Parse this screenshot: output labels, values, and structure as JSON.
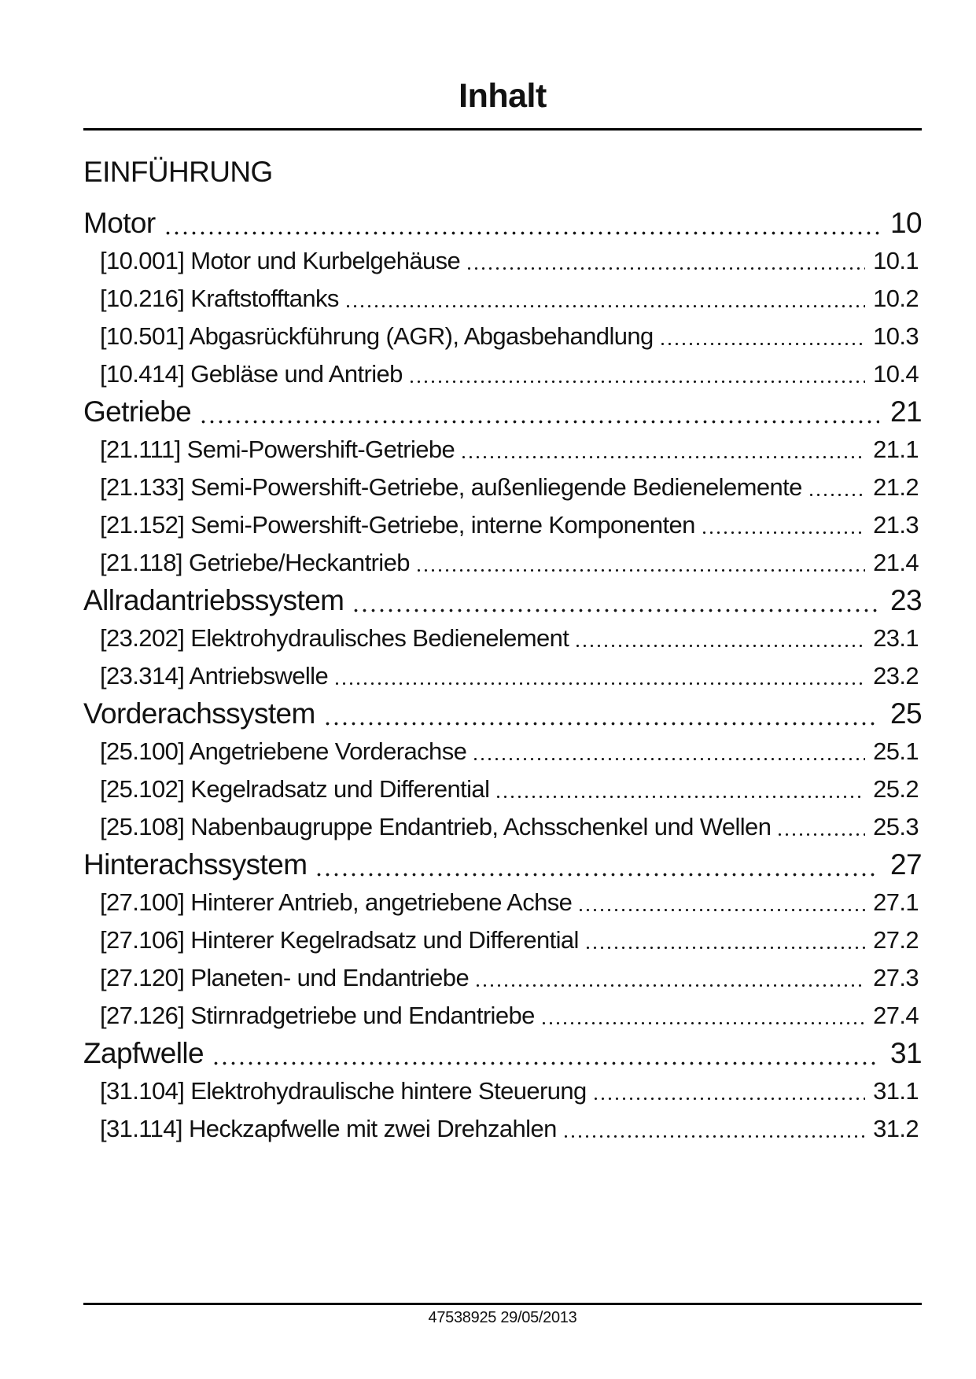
{
  "document": {
    "title": "Inhalt",
    "intro_heading": "EINFÜHRUNG",
    "footer_text": "47538925 29/05/2013",
    "colors": {
      "text": "#121212",
      "rule": "#000000",
      "background": "#ffffff"
    },
    "toc": {
      "sections": [
        {
          "label": "Motor",
          "page": "10",
          "entries": [
            {
              "label": "[10.001] Motor und Kurbelgehäuse",
              "page": "10.1"
            },
            {
              "label": "[10.216] Kraftstofftanks",
              "page": "10.2"
            },
            {
              "label": "[10.501] Abgasrückführung (AGR), Abgasbehandlung",
              "page": "10.3"
            },
            {
              "label": "[10.414] Gebläse und Antrieb",
              "page": "10.4"
            }
          ]
        },
        {
          "label": "Getriebe",
          "page": "21",
          "entries": [
            {
              "label": "[21.111] Semi-Powershift-Getriebe",
              "page": "21.1"
            },
            {
              "label": "[21.133] Semi-Powershift-Getriebe, außenliegende Bedienelemente",
              "page": "21.2"
            },
            {
              "label": "[21.152] Semi-Powershift-Getriebe, interne Komponenten",
              "page": "21.3"
            },
            {
              "label": "[21.118] Getriebe/Heckantrieb",
              "page": "21.4"
            }
          ]
        },
        {
          "label": "Allradantriebssystem",
          "page": "23",
          "entries": [
            {
              "label": "[23.202] Elektrohydraulisches Bedienelement",
              "page": "23.1"
            },
            {
              "label": "[23.314] Antriebswelle",
              "page": "23.2"
            }
          ]
        },
        {
          "label": "Vorderachssystem",
          "page": "25",
          "entries": [
            {
              "label": "[25.100] Angetriebene Vorderachse",
              "page": "25.1"
            },
            {
              "label": "[25.102] Kegelradsatz und Differential",
              "page": "25.2"
            },
            {
              "label": "[25.108] Nabenbaugruppe Endantrieb, Achsschenkel und Wellen",
              "page": "25.3"
            }
          ]
        },
        {
          "label": "Hinterachssystem",
          "page": "27",
          "entries": [
            {
              "label": "[27.100] Hinterer Antrieb, angetriebene Achse",
              "page": "27.1"
            },
            {
              "label": "[27.106] Hinterer Kegelradsatz und Differential",
              "page": "27.2"
            },
            {
              "label": "[27.120] Planeten- und Endantriebe",
              "page": "27.3"
            },
            {
              "label": "[27.126] Stirnradgetriebe und Endantriebe",
              "page": "27.4"
            }
          ]
        },
        {
          "label": "Zapfwelle",
          "page": "31",
          "entries": [
            {
              "label": "[31.104] Elektrohydraulische hintere Steuerung",
              "page": "31.1"
            },
            {
              "label": "[31.114] Heckzapfwelle mit zwei Drehzahlen",
              "page": "31.2"
            }
          ]
        }
      ]
    }
  }
}
